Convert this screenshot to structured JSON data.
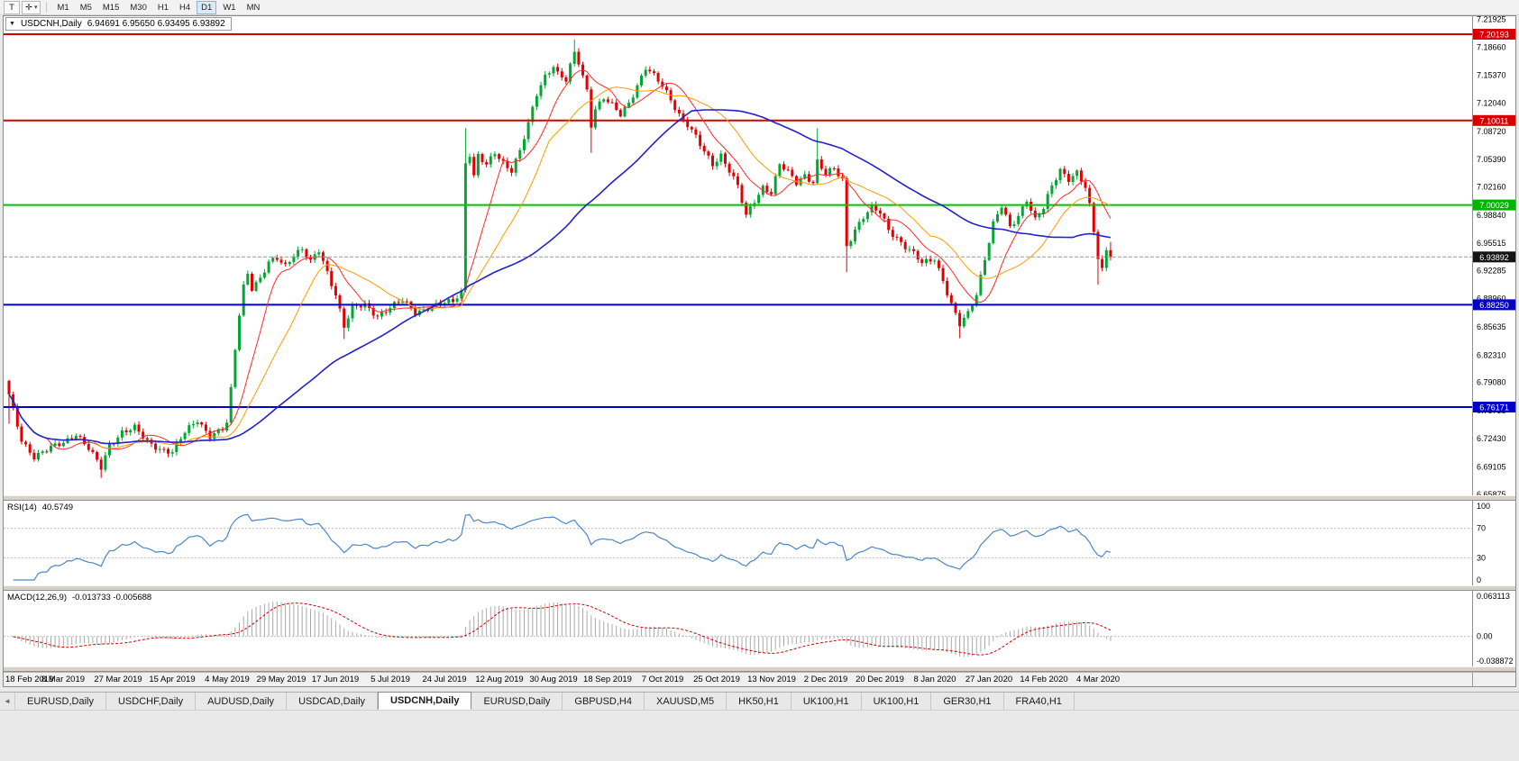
{
  "toolbar": {
    "tools": [
      {
        "label": "T"
      },
      {
        "label": "✛",
        "caret": "▾"
      }
    ],
    "timeframes": [
      "M1",
      "M5",
      "M15",
      "M30",
      "H1",
      "H4",
      "D1",
      "W1",
      "MN"
    ],
    "active_timeframe": "D1"
  },
  "chart": {
    "menu_arrow": "▼",
    "symbol": "USDCNH,Daily",
    "ohlc_text": "6.94691 6.95650 6.93495 6.93892",
    "last_bar": {
      "open": 6.94691,
      "high": 6.9565,
      "low": 6.93495,
      "close": 6.93892
    },
    "colors": {
      "bull": "#00a832",
      "bear": "#e30000",
      "macd_hist": "#aaaaaa",
      "macd_signal": "#cc0000",
      "rsi_line": "#4a86c8",
      "axis_line": "#909090",
      "current_line": "#9a9a9a"
    },
    "hlines": [
      {
        "label": "7.20193",
        "value": 7.20193,
        "color": "#d40000",
        "tag_bg": "#d40000"
      },
      {
        "label": "7.10011",
        "value": 7.10011,
        "color": "#d40000",
        "tag_bg": "#d40000"
      },
      {
        "label": "7.00029",
        "value": 7.00029,
        "color": "#00c200",
        "tag_bg": "#00b400"
      },
      {
        "label": "6.88250",
        "value": 6.8825,
        "color": "#0000c8",
        "tag_bg": "#0000c8"
      },
      {
        "label": "6.76171",
        "value": 6.76171,
        "color": "#0000c8",
        "tag_bg": "#0000c8"
      }
    ],
    "current_price": {
      "label": "6.93892",
      "value": 6.93892,
      "tag_bg": "#141414"
    }
  },
  "chart_data": {
    "type": "candlestick",
    "symbol": "USDCNH",
    "timeframe": "Daily",
    "bars": 264,
    "ylim": [
      6.6575,
      7.2232
    ],
    "y_ticks": [
      "7.21925",
      "7.18660",
      "7.15370",
      "7.12040",
      "7.08720",
      "7.05390",
      "7.02160",
      "6.98840",
      "6.95515",
      "6.92285",
      "6.88960",
      "6.85635",
      "6.82310",
      "6.79080",
      "6.75755",
      "6.72430",
      "6.69105",
      "6.65875"
    ],
    "x_labels": [
      "18 Feb 2019",
      "8 Mar 2019",
      "27 Mar 2019",
      "15 Apr 2019",
      "4 May 2019",
      "29 May 2019",
      "17 Jun 2019",
      "5 Jul 2019",
      "24 Jul 2019",
      "12 Aug 2019",
      "30 Aug 2019",
      "18 Sep 2019",
      "7 Oct 2019",
      "25 Oct 2019",
      "13 Nov 2019",
      "2 Dec 2019",
      "20 Dec 2019",
      "8 Jan 2020",
      "27 Jan 2020",
      "14 Feb 2020",
      "4 Mar 2020"
    ],
    "close_anchors": [
      [
        0,
        6.775
      ],
      [
        1,
        6.757
      ],
      [
        3,
        6.722
      ],
      [
        6,
        6.704
      ],
      [
        9,
        6.711
      ],
      [
        13,
        6.719
      ],
      [
        16,
        6.731
      ],
      [
        19,
        6.713
      ],
      [
        22,
        6.689
      ],
      [
        24,
        6.717
      ],
      [
        27,
        6.733
      ],
      [
        30,
        6.737
      ],
      [
        33,
        6.72
      ],
      [
        36,
        6.713
      ],
      [
        39,
        6.709
      ],
      [
        42,
        6.731
      ],
      [
        45,
        6.747
      ],
      [
        48,
        6.728
      ],
      [
        51,
        6.735
      ],
      [
        52,
        6.742
      ],
      [
        53,
        6.781
      ],
      [
        54,
        6.83
      ],
      [
        55,
        6.872
      ],
      [
        56,
        6.905
      ],
      [
        57,
        6.921
      ],
      [
        58,
        6.903
      ],
      [
        60,
        6.913
      ],
      [
        62,
        6.931
      ],
      [
        64,
        6.937
      ],
      [
        66,
        6.929
      ],
      [
        68,
        6.943
      ],
      [
        70,
        6.948
      ],
      [
        72,
        6.932
      ],
      [
        74,
        6.946
      ],
      [
        76,
        6.921
      ],
      [
        78,
        6.896
      ],
      [
        80,
        6.857
      ],
      [
        82,
        6.878
      ],
      [
        85,
        6.882
      ],
      [
        88,
        6.87
      ],
      [
        91,
        6.879
      ],
      [
        94,
        6.887
      ],
      [
        97,
        6.874
      ],
      [
        100,
        6.879
      ],
      [
        103,
        6.882
      ],
      [
        106,
        6.887
      ],
      [
        108,
        6.899
      ],
      [
        109,
        7.051
      ],
      [
        110,
        7.061
      ],
      [
        111,
        7.034
      ],
      [
        112,
        7.058
      ],
      [
        114,
        7.046
      ],
      [
        116,
        7.062
      ],
      [
        118,
        7.051
      ],
      [
        120,
        7.042
      ],
      [
        122,
        7.064
      ],
      [
        124,
        7.095
      ],
      [
        126,
        7.131
      ],
      [
        128,
        7.153
      ],
      [
        130,
        7.166
      ],
      [
        131,
        7.156
      ],
      [
        133,
        7.147
      ],
      [
        135,
        7.179
      ],
      [
        136,
        7.168
      ],
      [
        138,
        7.136
      ],
      [
        139,
        7.096
      ],
      [
        140,
        7.115
      ],
      [
        142,
        7.127
      ],
      [
        144,
        7.117
      ],
      [
        146,
        7.106
      ],
      [
        148,
        7.121
      ],
      [
        150,
        7.142
      ],
      [
        152,
        7.163
      ],
      [
        154,
        7.152
      ],
      [
        156,
        7.14
      ],
      [
        158,
        7.125
      ],
      [
        160,
        7.108
      ],
      [
        162,
        7.096
      ],
      [
        164,
        7.08
      ],
      [
        166,
        7.062
      ],
      [
        168,
        7.048
      ],
      [
        170,
        7.06
      ],
      [
        172,
        7.042
      ],
      [
        174,
        7.022
      ],
      [
        176,
        6.986
      ],
      [
        178,
        7.005
      ],
      [
        180,
        7.022
      ],
      [
        182,
        7.016
      ],
      [
        184,
        7.048
      ],
      [
        186,
        7.038
      ],
      [
        188,
        7.026
      ],
      [
        190,
        7.036
      ],
      [
        192,
        7.028
      ],
      [
        193,
        7.052
      ],
      [
        195,
        7.036
      ],
      [
        197,
        7.042
      ],
      [
        199,
        7.03
      ],
      [
        200,
        6.952
      ],
      [
        202,
        6.972
      ],
      [
        204,
        6.986
      ],
      [
        206,
        6.996
      ],
      [
        208,
        6.991
      ],
      [
        210,
        6.972
      ],
      [
        212,
        6.962
      ],
      [
        214,
        6.951
      ],
      [
        216,
        6.942
      ],
      [
        218,
        6.931
      ],
      [
        221,
        6.938
      ],
      [
        223,
        6.912
      ],
      [
        225,
        6.882
      ],
      [
        227,
        6.858
      ],
      [
        229,
        6.872
      ],
      [
        231,
        6.896
      ],
      [
        233,
        6.938
      ],
      [
        235,
        6.978
      ],
      [
        237,
        6.998
      ],
      [
        239,
        6.973
      ],
      [
        241,
        6.988
      ],
      [
        243,
        7.008
      ],
      [
        245,
        6.983
      ],
      [
        247,
        6.996
      ],
      [
        249,
        7.022
      ],
      [
        251,
        7.042
      ],
      [
        253,
        7.032
      ],
      [
        255,
        7.039
      ],
      [
        257,
        7.02
      ],
      [
        258,
        6.998
      ],
      [
        259,
        6.968
      ],
      [
        260,
        6.938
      ],
      [
        261,
        6.924
      ],
      [
        262,
        6.947
      ],
      [
        263,
        6.939
      ]
    ],
    "wick_overrides": {
      "0": {
        "l": 6.742
      },
      "22": {
        "l": 6.678
      },
      "80": {
        "l": 6.842
      },
      "109": {
        "h": 7.091
      },
      "135": {
        "h": 7.196
      },
      "139": {
        "l": 7.062
      },
      "193": {
        "h": 7.091
      },
      "200": {
        "l": 6.921
      },
      "227": {
        "l": 6.843
      },
      "260": {
        "l": 6.906
      }
    },
    "moving_averages": [
      {
        "period": 10,
        "color": "#ff2a2a",
        "width": 1
      },
      {
        "period": 21,
        "color": "#ff9c00",
        "width": 1
      },
      {
        "period": 55,
        "color": "#2222cc",
        "width": 1.6
      }
    ]
  },
  "rsi": {
    "label": "RSI(14)",
    "value": "40.5749",
    "period": 14,
    "levels": [
      {
        "label": "100",
        "value": 100
      },
      {
        "label": "70",
        "value": 70
      },
      {
        "label": "30",
        "value": 30
      },
      {
        "label": "0",
        "value": 0
      }
    ]
  },
  "macd": {
    "label": "MACD(12,26,9)",
    "values": "-0.013733 -0.005688",
    "fast": 12,
    "slow": 26,
    "signal": 9,
    "scale": [
      {
        "label": "0.063113",
        "value": 0.063113
      },
      {
        "label": "0.00",
        "value": 0
      },
      {
        "label": "-0.038872",
        "value": -0.038872
      }
    ]
  },
  "tabs": {
    "scroll_left": "◄",
    "items": [
      {
        "label": "EURUSD,Daily",
        "active": false
      },
      {
        "label": "USDCHF,Daily",
        "active": false
      },
      {
        "label": "AUDUSD,Daily",
        "active": false
      },
      {
        "label": "USDCAD,Daily",
        "active": false
      },
      {
        "label": "USDCNH,Daily",
        "active": true
      },
      {
        "label": "EURUSD,Daily",
        "active": false
      },
      {
        "label": "GBPUSD,H4",
        "active": false
      },
      {
        "label": "XAUUSD,M5",
        "active": false
      },
      {
        "label": "HK50,H1",
        "active": false
      },
      {
        "label": "UK100,H1",
        "active": false
      },
      {
        "label": "UK100,H1",
        "active": false
      },
      {
        "label": "GER30,H1",
        "active": false
      },
      {
        "label": "FRA40,H1",
        "active": false
      }
    ]
  }
}
